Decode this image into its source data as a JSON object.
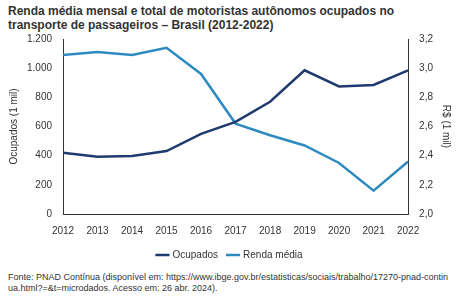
{
  "chart_data": {
    "type": "line",
    "title": "Renda média mensal e total de motoristas autônomos ocupados no transporte de passageiros – Brasil (2012-2022)",
    "source": "Fonte: PNAD Contínua (disponível em: https://www.ibge.gov.br/estatisticas/sociais/trabalho/17270-pnad-continua.html?=&t=microdados. Acesso em: 26 abr. 2024).",
    "y_label": "Ocupados (1 mil)",
    "y2_label": "R$ (1 mil)",
    "categories": [
      "2012",
      "2013",
      "2014",
      "2015",
      "2016",
      "2017",
      "2018",
      "2019",
      "2020",
      "2021",
      "2022"
    ],
    "series": [
      {
        "name": "Ocupados",
        "color": "#1f3a6e",
        "marker": "none",
        "line_style": "solid",
        "values": [
          420,
          393,
          398,
          432,
          550,
          632,
          770,
          985,
          875,
          885,
          985
        ]
      },
      {
        "name": "Renda média",
        "color": "#2e8bc0",
        "marker": "none",
        "line_style": "solid",
        "axis": "y2",
        "values": [
          3.09,
          3.11,
          3.09,
          3.14,
          2.96,
          2.62,
          2.54,
          2.47,
          2.35,
          2.16,
          2.36
        ]
      }
    ],
    "ylim": [
      0,
      1200
    ],
    "yticks": [
      0,
      200,
      400,
      600,
      800,
      {
        "value": 1000,
        "label": "1.000"
      },
      {
        "value": 1200,
        "label": "1.200"
      }
    ],
    "y2lim": [
      2.0,
      3.2
    ],
    "y2ticks": [
      {
        "value": 2.0,
        "label": "2,0"
      },
      {
        "value": 2.2,
        "label": "2,2"
      },
      {
        "value": 2.4,
        "label": "2,4"
      },
      {
        "value": 2.6,
        "label": "2,6"
      },
      {
        "value": 2.8,
        "label": "2,8"
      },
      {
        "value": 3.0,
        "label": "3,0"
      },
      {
        "value": 3.2,
        "label": "3,2"
      }
    ],
    "grid": false,
    "legend": "bottom"
  }
}
